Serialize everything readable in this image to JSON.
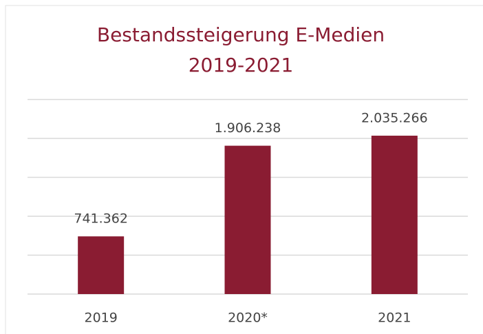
{
  "chart_data": {
    "type": "bar",
    "title": [
      "Bestandssteigerung E-Medien",
      "2019-2021"
    ],
    "categories": [
      "2019",
      "2020*",
      "2021"
    ],
    "values": [
      741362,
      1906238,
      2035266
    ],
    "value_labels": [
      "741.362",
      "1.906.238",
      "2.035.266"
    ],
    "color": "#8a1c32",
    "ylim": [
      0,
      2500000
    ],
    "yticks": [
      0,
      500000,
      1000000,
      1500000,
      2000000,
      2500000
    ],
    "grid": true
  }
}
